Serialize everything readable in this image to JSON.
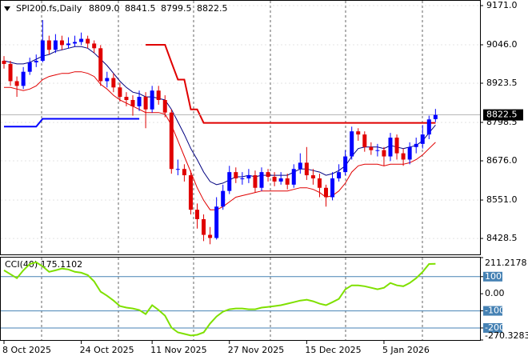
{
  "chart_data": [
    {
      "type": "candlestick",
      "title": "SPI200.fs,Daily",
      "ohlc_labels": [
        "8809.0",
        "8841.5",
        "8799.5",
        "8822.5"
      ],
      "categories": [
        "8 Oct 2025",
        null,
        null,
        null,
        null,
        null,
        null,
        null,
        null,
        null,
        null,
        null,
        "24 Oct 2025",
        null,
        null,
        null,
        null,
        null,
        null,
        null,
        null,
        null,
        null,
        "11 Nov 2025",
        null,
        null,
        null,
        null,
        null,
        null,
        null,
        null,
        null,
        null,
        null,
        "27 Nov 2025",
        null,
        null,
        null,
        null,
        null,
        null,
        null,
        null,
        null,
        null,
        null,
        "15 Dec 2025",
        null,
        null,
        null,
        null,
        null,
        null,
        null,
        null,
        null,
        null,
        null,
        "5 Jan 2026",
        null,
        null,
        null,
        null,
        null,
        null,
        null,
        null
      ],
      "open": [
        8995,
        8985,
        8930,
        8915,
        8960,
        8990,
        8995,
        9060,
        9030,
        9060,
        9045,
        9050,
        9055,
        9065,
        9050,
        9035,
        8930,
        8940,
        8910,
        8880,
        8870,
        8850,
        8880,
        8840,
        8900,
        8870,
        8830,
        8650,
        8650,
        8630,
        8520,
        8490,
        8440,
        8430,
        8530,
        8580,
        8640,
        8620,
        8620,
        8630,
        8590,
        8640,
        8625,
        8610,
        8620,
        8600,
        8650,
        8670,
        8630,
        8620,
        8590,
        8560,
        8620,
        8640,
        8690,
        8770,
        8760,
        8720,
        8710,
        8710,
        8690,
        8750,
        8700,
        8680,
        8720,
        8730,
        8760,
        8809.0
      ],
      "high": [
        9010,
        8995,
        8945,
        8975,
        9005,
        9015,
        9125,
        9075,
        9080,
        9075,
        9070,
        9075,
        9085,
        9075,
        9060,
        9045,
        8960,
        8955,
        8925,
        8895,
        8885,
        8900,
        8895,
        8915,
        8915,
        8885,
        8840,
        8680,
        8665,
        8645,
        8540,
        8505,
        8465,
        8560,
        8600,
        8660,
        8655,
        8640,
        8650,
        8645,
        8655,
        8650,
        8640,
        8640,
        8635,
        8665,
        8700,
        8720,
        8650,
        8635,
        8600,
        8640,
        8665,
        8710,
        8785,
        8780,
        8770,
        8735,
        8730,
        8720,
        8765,
        8760,
        8715,
        8735,
        8750,
        8790,
        8820,
        8841.5
      ],
      "low": [
        8970,
        8915,
        8880,
        8905,
        8950,
        8975,
        8990,
        9015,
        9020,
        9030,
        9035,
        9040,
        9045,
        9035,
        9020,
        8915,
        8910,
        8895,
        8865,
        8850,
        8820,
        8835,
        8780,
        8830,
        8855,
        8815,
        8635,
        8630,
        8610,
        8505,
        8460,
        8420,
        8410,
        8425,
        8520,
        8570,
        8605,
        8600,
        8605,
        8575,
        8580,
        8610,
        8595,
        8600,
        8585,
        8590,
        8635,
        8615,
        8600,
        8560,
        8530,
        8550,
        8610,
        8630,
        8680,
        8740,
        8705,
        8695,
        8690,
        8660,
        8675,
        8680,
        8660,
        8665,
        8700,
        8715,
        8745,
        8799.5
      ],
      "close": [
        8985,
        8930,
        8915,
        8960,
        8990,
        8995,
        9060,
        9030,
        9060,
        9045,
        9050,
        9055,
        9065,
        9050,
        9035,
        8930,
        8940,
        8910,
        8880,
        8870,
        8850,
        8880,
        8840,
        8900,
        8870,
        8830,
        8650,
        8650,
        8630,
        8520,
        8490,
        8440,
        8430,
        8530,
        8580,
        8640,
        8620,
        8620,
        8630,
        8590,
        8640,
        8625,
        8610,
        8620,
        8600,
        8650,
        8670,
        8630,
        8620,
        8590,
        8560,
        8620,
        8640,
        8690,
        8770,
        8760,
        8720,
        8710,
        8710,
        8690,
        8750,
        8700,
        8680,
        8720,
        8730,
        8760,
        8808,
        8822.5
      ],
      "up_color": "#0000ff",
      "down_color": "#e00000",
      "lines": [
        {
          "color": "#000080",
          "width": 1,
          "values": [
            8995,
            8990,
            8985,
            8985,
            8990,
            9000,
            9010,
            9015,
            9025,
            9030,
            9035,
            9040,
            9040,
            9035,
            9020,
            9000,
            8980,
            8955,
            8930,
            8910,
            8895,
            8890,
            8880,
            8880,
            8875,
            8870,
            8840,
            8800,
            8760,
            8715,
            8680,
            8640,
            8610,
            8600,
            8605,
            8615,
            8625,
            8625,
            8630,
            8625,
            8630,
            8630,
            8630,
            8630,
            8630,
            8640,
            8650,
            8650,
            8645,
            8640,
            8630,
            8635,
            8645,
            8660,
            8690,
            8715,
            8720,
            8720,
            8720,
            8715,
            8725,
            8720,
            8715,
            8720,
            8725,
            8740,
            8765,
            8790
          ]
        },
        {
          "color": "#e00000",
          "width": 1,
          "values": [
            8910,
            8910,
            8905,
            8900,
            8905,
            8915,
            8935,
            8945,
            8950,
            8955,
            8955,
            8960,
            8960,
            8955,
            8945,
            8920,
            8905,
            8885,
            8870,
            8860,
            8850,
            8840,
            8830,
            8830,
            8830,
            8825,
            8790,
            8740,
            8690,
            8640,
            8590,
            8550,
            8520,
            8520,
            8530,
            8545,
            8560,
            8565,
            8570,
            8575,
            8580,
            8580,
            8580,
            8580,
            8580,
            8585,
            8590,
            8590,
            8585,
            8575,
            8560,
            8565,
            8580,
            8605,
            8640,
            8660,
            8665,
            8665,
            8665,
            8660,
            8665,
            8665,
            8665,
            8670,
            8680,
            8695,
            8715,
            8735
          ]
        },
        {
          "color": "#e00000",
          "width": 2,
          "values": [
            null,
            null,
            null,
            null,
            null,
            null,
            null,
            null,
            null,
            null,
            null,
            null,
            null,
            null,
            null,
            null,
            null,
            null,
            null,
            null,
            null,
            null,
            9046,
            9046,
            9046,
            9046,
            8990,
            8935,
            8935,
            8840,
            8840,
            8797,
            8797,
            8797,
            8797,
            8797,
            8797,
            8797,
            8797,
            8797,
            8797,
            8797,
            8797,
            8797,
            8797,
            8797,
            8797,
            8797,
            8797,
            8797,
            8797,
            8797,
            8797,
            8797,
            8797,
            8797,
            8797,
            8797,
            8797,
            8797,
            8797,
            8797,
            8797,
            8797,
            8797,
            8797,
            8797,
            8797
          ]
        },
        {
          "color": "#0000ff",
          "width": 2,
          "values": [
            8785,
            8785,
            8785,
            8785,
            8785,
            8785,
            8810,
            8810,
            8810,
            8810,
            8810,
            8810,
            8810,
            8810,
            8810,
            8810,
            8810,
            8810,
            8810,
            8810,
            8810,
            8810,
            null,
            null,
            null,
            null,
            null,
            null,
            null,
            null,
            null,
            null,
            null,
            null,
            null,
            null,
            null,
            null,
            null,
            null,
            null,
            null,
            null,
            null,
            null,
            null,
            null,
            null,
            null,
            null,
            null,
            null,
            null,
            null,
            null,
            null,
            null,
            null,
            null,
            null,
            null,
            null,
            null,
            null,
            null,
            null,
            null,
            null
          ]
        }
      ],
      "last_price": {
        "value": 8822.5,
        "label": "8822.5"
      },
      "ylim": [
        8377.6,
        9186.3
      ],
      "yticks": [
        {
          "value": 9171.0,
          "label": "9171.0"
        },
        {
          "value": 9046.0,
          "label": "9046.0"
        },
        {
          "value": 8923.5,
          "label": "8923.5"
        },
        {
          "value": 8798.5,
          "label": "8798.5"
        },
        {
          "value": 8676.0,
          "label": "8676.0"
        },
        {
          "value": 8551.0,
          "label": "8551.0"
        },
        {
          "value": 8428.5,
          "label": "8428.5"
        }
      ],
      "grid": true
    },
    {
      "type": "line",
      "title": "CCI(40) 175.1102",
      "color": "#7fe000",
      "values": [
        137,
        114,
        91,
        137,
        174,
        184,
        160,
        128,
        137,
        147,
        142,
        128,
        123,
        109,
        72,
        12,
        -12,
        -40,
        -72,
        -81,
        -86,
        -95,
        -119,
        -67,
        -95,
        -128,
        -198,
        -226,
        -235,
        -244,
        -240,
        -226,
        -174,
        -133,
        -105,
        -91,
        -86,
        -86,
        -91,
        -91,
        -81,
        -77,
        -72,
        -67,
        -58,
        -49,
        -40,
        -35,
        -44,
        -58,
        -67,
        -49,
        -30,
        26,
        49,
        49,
        44,
        35,
        26,
        35,
        63,
        49,
        44,
        63,
        91,
        128,
        174,
        175.1102
      ],
      "levels": [
        100,
        -100,
        -200
      ],
      "level_color": "#4682b4",
      "ylim": [
        -270.3283,
        211.2178
      ],
      "yticks": [
        {
          "value": 211.2178,
          "label": "211.2178"
        },
        100,
        {
          "value": 0,
          "label": "0.00"
        },
        -100,
        -200,
        {
          "value": -270.3283,
          "label": "-270.3283"
        }
      ]
    }
  ]
}
